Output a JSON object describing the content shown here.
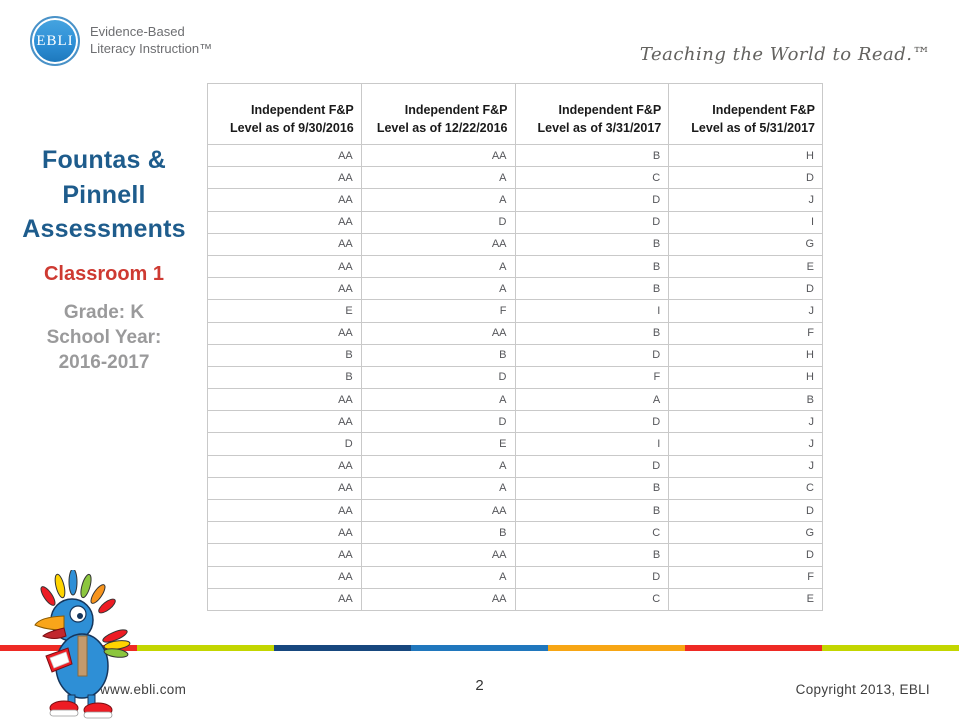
{
  "branding": {
    "logo_text": "EBLI",
    "org_line1": "Evidence-Based",
    "org_line2": "Literacy Instruction™",
    "tagline": "Teaching the World to Read.™"
  },
  "sidebar": {
    "title_line1": "Fountas &",
    "title_line2": "Pinnell",
    "title_line3": "Assessments",
    "classroom": "Classroom 1",
    "grade": "Grade: K",
    "year_label": "School Year:",
    "year": "2016-2017"
  },
  "table": {
    "columns": [
      {
        "line1": "Independent F&P",
        "line2": "Level as of 9/30/2016"
      },
      {
        "line1": "Independent F&P",
        "line2": "Level as of 12/22/2016"
      },
      {
        "line1": "Independent F&P",
        "line2": "Level as of 3/31/2017"
      },
      {
        "line1": "Independent F&P",
        "line2": "Level as of 5/31/2017"
      }
    ],
    "rows": [
      [
        "AA",
        "AA",
        "B",
        "H"
      ],
      [
        "AA",
        "A",
        "C",
        "D"
      ],
      [
        "AA",
        "A",
        "D",
        "J"
      ],
      [
        "AA",
        "D",
        "D",
        "I"
      ],
      [
        "AA",
        "AA",
        "B",
        "G"
      ],
      [
        "AA",
        "A",
        "B",
        "E"
      ],
      [
        "AA",
        "A",
        "B",
        "D"
      ],
      [
        "E",
        "F",
        "I",
        "J"
      ],
      [
        "AA",
        "AA",
        "B",
        "F"
      ],
      [
        "B",
        "B",
        "D",
        "H"
      ],
      [
        "B",
        "D",
        "F",
        "H"
      ],
      [
        "AA",
        "A",
        "A",
        "B"
      ],
      [
        "AA",
        "D",
        "D",
        "J"
      ],
      [
        "D",
        "E",
        "I",
        "J"
      ],
      [
        "AA",
        "A",
        "D",
        "J"
      ],
      [
        "AA",
        "A",
        "B",
        "C"
      ],
      [
        "AA",
        "AA",
        "B",
        "D"
      ],
      [
        "AA",
        "B",
        "C",
        "G"
      ],
      [
        "AA",
        "AA",
        "B",
        "D"
      ],
      [
        "AA",
        "A",
        "D",
        "F"
      ],
      [
        "AA",
        "AA",
        "C",
        "E"
      ]
    ]
  },
  "footer": {
    "website": "www.ebli.com",
    "page_number": "2",
    "copyright": "Copyright 2013, EBLI"
  },
  "colors": {
    "title_blue": "#1e5c8c",
    "classroom_red": "#ce3a32",
    "meta_gray": "#9a9a9b",
    "logo_blue": "#2e8fd6",
    "stripe": [
      "#ee2a24",
      "#c3d600",
      "#17477e",
      "#2077bd",
      "#f7a614",
      "#ee2a24",
      "#c3d600"
    ]
  },
  "icons": {
    "logo": "ebli-logo-circle",
    "mascot": "ebli-parrot-mascot"
  }
}
